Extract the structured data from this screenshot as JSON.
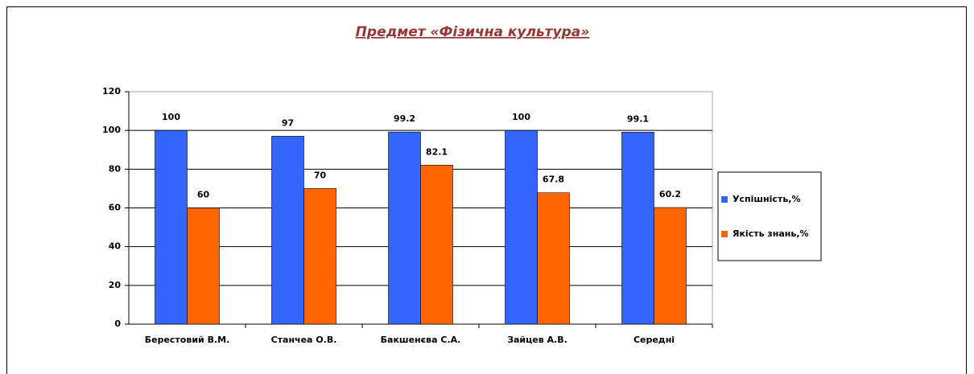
{
  "chart_data": {
    "type": "bar",
    "title": "Предмет «Фізична культура»",
    "categories": [
      "Берестовий В.М.",
      "Станчеа О.В.",
      "Бакшенєва С.А.",
      "Зайцев А.В.",
      "Середні"
    ],
    "series": [
      {
        "name": "Успішність,%",
        "color": "#3366ff",
        "values": [
          100,
          97,
          99.2,
          100,
          99.1
        ]
      },
      {
        "name": "Якість знань,%",
        "color": "#ff6600",
        "values": [
          60,
          70,
          82.1,
          67.8,
          60.2
        ]
      }
    ],
    "ylim": [
      0,
      120
    ],
    "yticks": [
      0,
      20,
      40,
      60,
      80,
      100,
      120
    ],
    "grid": true,
    "legend": "right",
    "data_labels": true
  }
}
